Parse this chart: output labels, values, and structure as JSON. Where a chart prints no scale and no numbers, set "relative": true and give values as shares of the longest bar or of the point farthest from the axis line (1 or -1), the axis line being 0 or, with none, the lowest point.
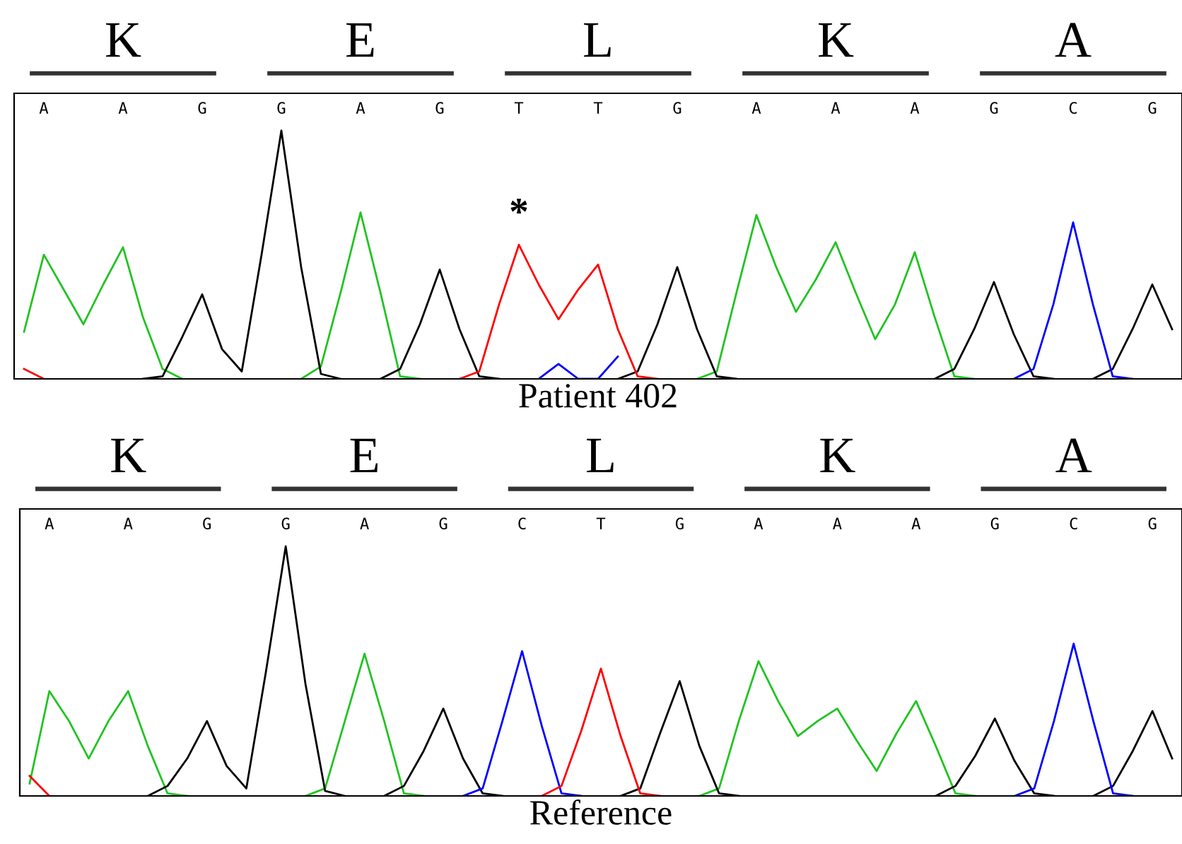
{
  "chart_data": [
    {
      "type": "line",
      "relative": true,
      "xlabel": "Patient 402",
      "categories": [
        null,
        "A",
        null,
        null,
        null,
        "A",
        null,
        null,
        null,
        "G",
        null,
        null,
        null,
        "G",
        null,
        null,
        null,
        "A",
        null,
        null,
        null,
        "G",
        null,
        null,
        null,
        "T",
        null,
        null,
        null,
        "T",
        null,
        null,
        null,
        "G",
        null,
        null,
        null,
        "A",
        null,
        null,
        null,
        "A",
        null,
        null,
        null,
        "A",
        null,
        null,
        null,
        "G",
        null,
        null,
        null,
        "C",
        null,
        null,
        null,
        "G",
        null
      ],
      "annotations": [
        "K",
        "E",
        "L",
        "K",
        "A",
        {
          "text": "*",
          "x": "T",
          "y": 0.54
        }
      ],
      "marker": "none",
      "line_style": "solid",
      "series": [
        {
          "color": "#22c322",
          "values": [
            0.19,
            0.5,
            0.36,
            0.22,
            0.38,
            0.53,
            0.25,
            0.04,
            0,
            null,
            null,
            null,
            null,
            null,
            0,
            0.05,
            0.35,
            0.67,
            0.35,
            0.01,
            0,
            null,
            null,
            null,
            null,
            null,
            null,
            null,
            null,
            null,
            null,
            null,
            null,
            null,
            0,
            0.03,
            0.35,
            0.66,
            0.45,
            0.27,
            0.4,
            0.55,
            0.35,
            0.16,
            0.3,
            0.51,
            0.25,
            0.01,
            0,
            null,
            null,
            null,
            null,
            null,
            null,
            null,
            null,
            null,
            null
          ]
        },
        {
          "color": "#000000",
          "values": [
            null,
            null,
            null,
            null,
            null,
            null,
            0,
            0.01,
            0.17,
            0.34,
            0.12,
            0.03,
            0.5,
            1.0,
            0.45,
            0.02,
            0,
            null,
            0,
            0.04,
            0.22,
            0.44,
            0.2,
            0.01,
            0,
            null,
            null,
            null,
            null,
            null,
            0,
            0.03,
            0.22,
            0.45,
            0.2,
            0.01,
            0,
            null,
            null,
            null,
            null,
            null,
            null,
            null,
            null,
            null,
            0,
            0.04,
            0.2,
            0.39,
            0.18,
            0.01,
            0,
            null,
            0,
            0.04,
            0.2,
            0.38,
            0.2
          ]
        },
        {
          "color": "#ff0000",
          "values": [
            0.04,
            0,
            null,
            null,
            null,
            null,
            null,
            null,
            null,
            null,
            null,
            null,
            null,
            null,
            null,
            null,
            null,
            null,
            null,
            null,
            null,
            null,
            0,
            0.03,
            0.3,
            0.54,
            0.38,
            0.24,
            0.36,
            0.46,
            0.2,
            0.01,
            0,
            null,
            null,
            null,
            null,
            null,
            null,
            null,
            null,
            null,
            null,
            null,
            null,
            null,
            null,
            null,
            null,
            null,
            null,
            null,
            null,
            null,
            null,
            null,
            null,
            null,
            null
          ]
        },
        {
          "color": "#0000ff",
          "values": [
            null,
            null,
            null,
            null,
            null,
            null,
            null,
            null,
            null,
            null,
            null,
            null,
            null,
            null,
            null,
            null,
            null,
            null,
            null,
            null,
            null,
            null,
            null,
            null,
            null,
            null,
            0,
            0.06,
            0,
            0,
            0.09,
            null,
            null,
            null,
            null,
            null,
            null,
            null,
            null,
            null,
            null,
            null,
            null,
            null,
            null,
            null,
            null,
            null,
            null,
            null,
            0,
            0.04,
            0.3,
            0.63,
            0.3,
            0.01,
            0,
            null,
            null
          ]
        }
      ]
    },
    {
      "type": "line",
      "relative": true,
      "xlabel": "Reference",
      "categories": [
        null,
        "A",
        null,
        null,
        null,
        "A",
        null,
        null,
        null,
        "G",
        null,
        null,
        null,
        "G",
        null,
        null,
        null,
        "A",
        null,
        null,
        null,
        "G",
        null,
        null,
        null,
        "C",
        null,
        null,
        null,
        "T",
        null,
        null,
        null,
        "G",
        null,
        null,
        null,
        "A",
        null,
        null,
        null,
        "A",
        null,
        null,
        null,
        "A",
        null,
        null,
        null,
        "G",
        null,
        null,
        null,
        "C",
        null,
        null,
        null,
        "G",
        null
      ],
      "annotations": [
        "K",
        "E",
        "L",
        "K",
        "A"
      ],
      "marker": "none",
      "line_style": "solid",
      "series": [
        {
          "color": "#22c322",
          "values": [
            0.05,
            0.42,
            0.3,
            0.15,
            0.3,
            0.42,
            0.2,
            0.01,
            0,
            null,
            null,
            null,
            null,
            null,
            0,
            0.03,
            0.3,
            0.57,
            0.3,
            0.01,
            0,
            null,
            null,
            null,
            null,
            null,
            null,
            null,
            null,
            null,
            null,
            null,
            null,
            null,
            0,
            0.03,
            0.3,
            0.54,
            0.38,
            0.24,
            0.3,
            0.35,
            0.22,
            0.1,
            0.25,
            0.38,
            0.2,
            0.01,
            0,
            null,
            null,
            null,
            null,
            null,
            null,
            null,
            null,
            null,
            null
          ]
        },
        {
          "color": "#000000",
          "values": [
            null,
            null,
            null,
            null,
            null,
            null,
            0,
            0.04,
            0.15,
            0.3,
            0.12,
            0.03,
            0.5,
            1.0,
            0.45,
            0.02,
            0,
            null,
            0,
            0.04,
            0.18,
            0.35,
            0.15,
            0.01,
            0,
            null,
            null,
            null,
            null,
            null,
            0,
            0.03,
            0.25,
            0.46,
            0.2,
            0.01,
            0,
            null,
            null,
            null,
            null,
            null,
            null,
            null,
            null,
            null,
            0,
            0.04,
            0.16,
            0.31,
            0.14,
            0.01,
            0,
            null,
            0,
            0.04,
            0.18,
            0.34,
            0.15
          ]
        },
        {
          "color": "#0000ff",
          "values": [
            null,
            null,
            null,
            null,
            null,
            null,
            null,
            null,
            null,
            null,
            null,
            null,
            null,
            null,
            null,
            null,
            null,
            null,
            null,
            null,
            null,
            null,
            0,
            0.03,
            0.3,
            0.58,
            0.28,
            0.01,
            0,
            null,
            null,
            null,
            null,
            null,
            null,
            null,
            null,
            null,
            null,
            null,
            null,
            null,
            null,
            null,
            null,
            null,
            null,
            null,
            null,
            null,
            0,
            0.03,
            0.3,
            0.61,
            0.3,
            0.01,
            0,
            null,
            null
          ]
        },
        {
          "color": "#ff0000",
          "values": [
            0.08,
            0,
            null,
            null,
            null,
            null,
            null,
            null,
            null,
            null,
            null,
            null,
            null,
            null,
            null,
            null,
            null,
            null,
            null,
            null,
            null,
            null,
            null,
            null,
            null,
            null,
            0,
            0.04,
            0.26,
            0.51,
            0.24,
            0.01,
            0,
            null,
            null,
            null,
            null,
            null,
            null,
            null,
            null,
            null,
            null,
            null,
            null,
            null,
            null,
            null,
            null,
            null,
            null,
            null,
            null,
            null,
            null,
            null,
            null,
            null,
            null
          ]
        }
      ]
    }
  ]
}
